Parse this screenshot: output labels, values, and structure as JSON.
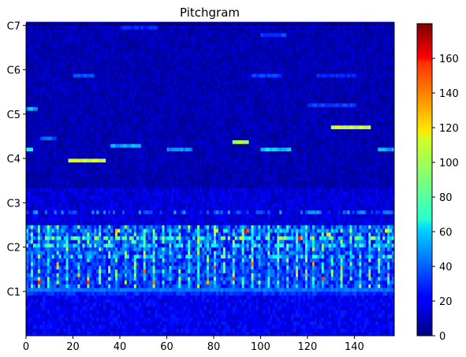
{
  "chart_data": {
    "type": "heatmap",
    "title": "Pitchgram",
    "xlabel": "",
    "ylabel": "",
    "colormap": "jet",
    "xlim": [
      0,
      157
    ],
    "x_ticks": [
      0,
      20,
      40,
      60,
      80,
      100,
      120,
      140
    ],
    "y_ticks": [
      "C1",
      "C2",
      "C3",
      "C4",
      "C5",
      "C6",
      "C7"
    ],
    "y_tick_semitones": [
      12,
      24,
      36,
      48,
      60,
      72,
      84
    ],
    "y_range_semitones": [
      0,
      84.5
    ],
    "colorbar": {
      "min": 0,
      "max": 180,
      "ticks": [
        0,
        20,
        40,
        60,
        80,
        100,
        120,
        140,
        160
      ]
    },
    "approximate_features": [
      {
        "note": "B3",
        "semitone": 47,
        "from_frame": 18,
        "to_frame": 33,
        "value": 110
      },
      {
        "note": "G#4",
        "semitone": 56,
        "from_frame": 130,
        "to_frame": 146,
        "value": 110
      },
      {
        "note": "E4",
        "semitone": 52,
        "from_frame": 88,
        "to_frame": 94,
        "value": 100
      },
      {
        "note": "D2 region",
        "semitone": 26,
        "note_text": "bright broken bands around C2",
        "value": 60
      },
      {
        "note": "C1 band",
        "semitone": 12,
        "from_frame": 0,
        "to_frame": 157,
        "value": 45
      }
    ]
  }
}
